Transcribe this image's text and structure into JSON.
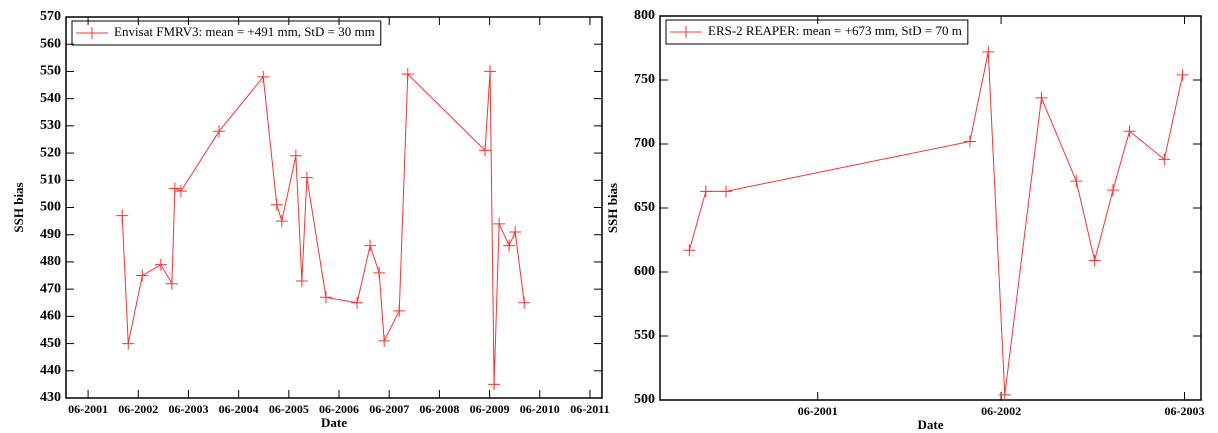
{
  "chart_data": [
    {
      "type": "line",
      "xlabel": "Date",
      "ylabel": "SSH bias",
      "xlim": [
        2000.96,
        2011.64
      ],
      "ylim": [
        430,
        570
      ],
      "xticks": [
        {
          "value": 2001.4,
          "label": "06-2001"
        },
        {
          "value": 2002.4,
          "label": "06-2002"
        },
        {
          "value": 2003.4,
          "label": "06-2003"
        },
        {
          "value": 2004.4,
          "label": "06-2004"
        },
        {
          "value": 2005.4,
          "label": "06-2005"
        },
        {
          "value": 2006.4,
          "label": "06-2006"
        },
        {
          "value": 2007.4,
          "label": "06-2007"
        },
        {
          "value": 2008.4,
          "label": "06-2008"
        },
        {
          "value": 2009.4,
          "label": "06-2009"
        },
        {
          "value": 2010.4,
          "label": "06-2010"
        },
        {
          "value": 2011.4,
          "label": "06-2011"
        }
      ],
      "yticks": [
        430,
        440,
        450,
        460,
        470,
        480,
        490,
        500,
        510,
        520,
        530,
        540,
        550,
        560,
        570
      ],
      "legend": "upper left",
      "series": [
        {
          "name": "Envisat FMRV3: mean = +491 mm, StD = 30 mm",
          "color": "#ff3030",
          "x": [
            2002.08,
            2002.2,
            2002.48,
            2002.85,
            2003.07,
            2003.13,
            2003.25,
            2004.01,
            2004.89,
            2005.16,
            2005.26,
            2005.54,
            2005.66,
            2005.76,
            2006.14,
            2006.76,
            2007.02,
            2007.2,
            2007.3,
            2007.6,
            2007.77,
            2009.31,
            2009.41,
            2009.49,
            2009.59,
            2009.79,
            2009.91,
            2010.09
          ],
          "values": [
            497,
            450,
            475,
            479,
            472,
            507,
            506,
            528,
            548,
            501,
            495,
            519,
            473,
            511,
            467,
            465,
            486,
            476,
            451,
            462,
            549,
            521,
            550,
            435,
            494,
            486,
            491,
            465
          ]
        }
      ]
    },
    {
      "type": "line",
      "xlabel": "Date",
      "ylabel": "SSH bias",
      "xlim": [
        2000.54,
        2003.49
      ],
      "ylim": [
        500,
        800
      ],
      "xticks": [
        {
          "value": 2001.4,
          "label": "06-2001"
        },
        {
          "value": 2002.4,
          "label": "06-2002"
        },
        {
          "value": 2003.4,
          "label": "06-2003"
        }
      ],
      "yticks": [
        500,
        550,
        600,
        650,
        700,
        750,
        800
      ],
      "legend": "upper left",
      "series": [
        {
          "name": "ERS-2 REAPER: mean = +673 mm, StD = 70 m",
          "color": "#ff3030",
          "x": [
            2000.7,
            2000.79,
            2000.9,
            2002.23,
            2002.33,
            2002.42,
            2002.62,
            2002.81,
            2002.91,
            2003.01,
            2003.1,
            2003.29,
            2003.39
          ],
          "values": [
            617,
            663,
            663,
            702,
            772,
            504,
            736,
            671,
            609,
            664,
            710,
            688,
            754
          ]
        }
      ]
    }
  ]
}
